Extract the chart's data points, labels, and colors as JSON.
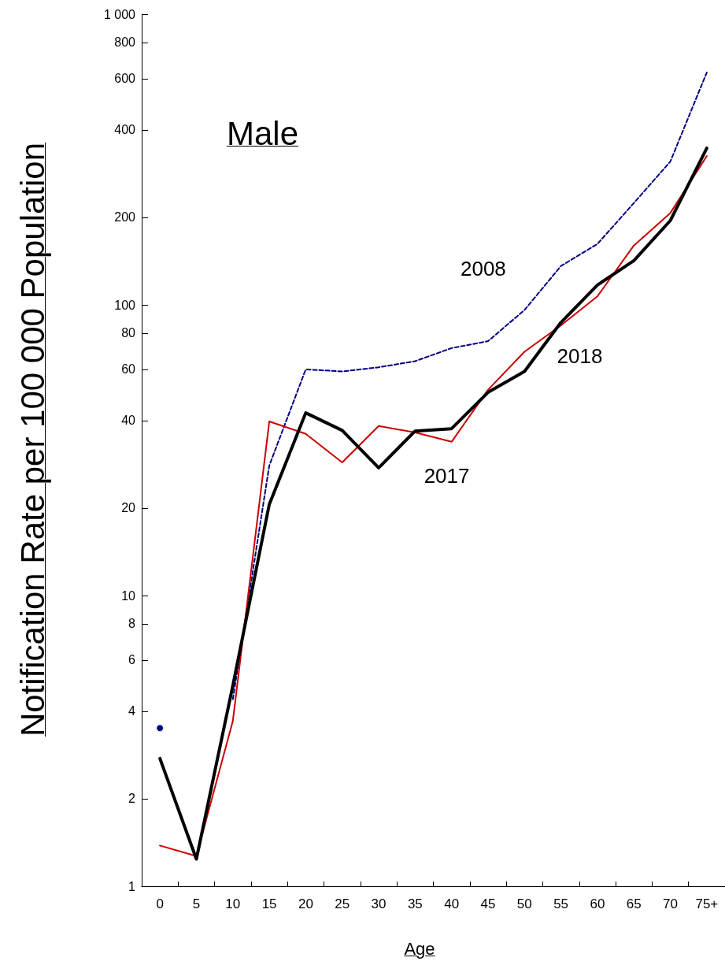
{
  "chart_data": {
    "type": "line",
    "title": "Male",
    "xlabel": "Age",
    "ylabel": "Notification Rate per 100 000 Population",
    "categories": [
      "0",
      "5",
      "10",
      "15",
      "20",
      "25",
      "30",
      "35",
      "40",
      "45",
      "50",
      "55",
      "60",
      "65",
      "70",
      "75+"
    ],
    "series": [
      {
        "name": "2008",
        "color": "#000080",
        "line_style": "dashed",
        "values": [
          3.5,
          null,
          4.4,
          28,
          60,
          59,
          61,
          64,
          71,
          75,
          96,
          136,
          162,
          224,
          311,
          630
        ]
      },
      {
        "name": "2017",
        "color": "#cc0000",
        "line_style": "solid",
        "values": [
          1.38,
          1.27,
          3.7,
          39.7,
          36,
          28.7,
          38.3,
          36.4,
          33.8,
          51,
          69,
          85,
          107,
          160,
          207,
          325
        ]
      },
      {
        "name": "2018",
        "color": "#000000",
        "line_style": "solid",
        "values": [
          2.75,
          1.24,
          4.9,
          20.6,
          42.5,
          37,
          27.5,
          36.8,
          37.5,
          50,
          59,
          87,
          117,
          142,
          195,
          346
        ]
      }
    ],
    "log": "y",
    "ylim": [
      1,
      1000
    ],
    "yticks": [
      1,
      2,
      4,
      6,
      8,
      10,
      20,
      40,
      60,
      80,
      100,
      200,
      400,
      600,
      800,
      {
        "value": 1000,
        "label": "1 000"
      }
    ],
    "grid": false,
    "legend": false,
    "marker": "none"
  }
}
